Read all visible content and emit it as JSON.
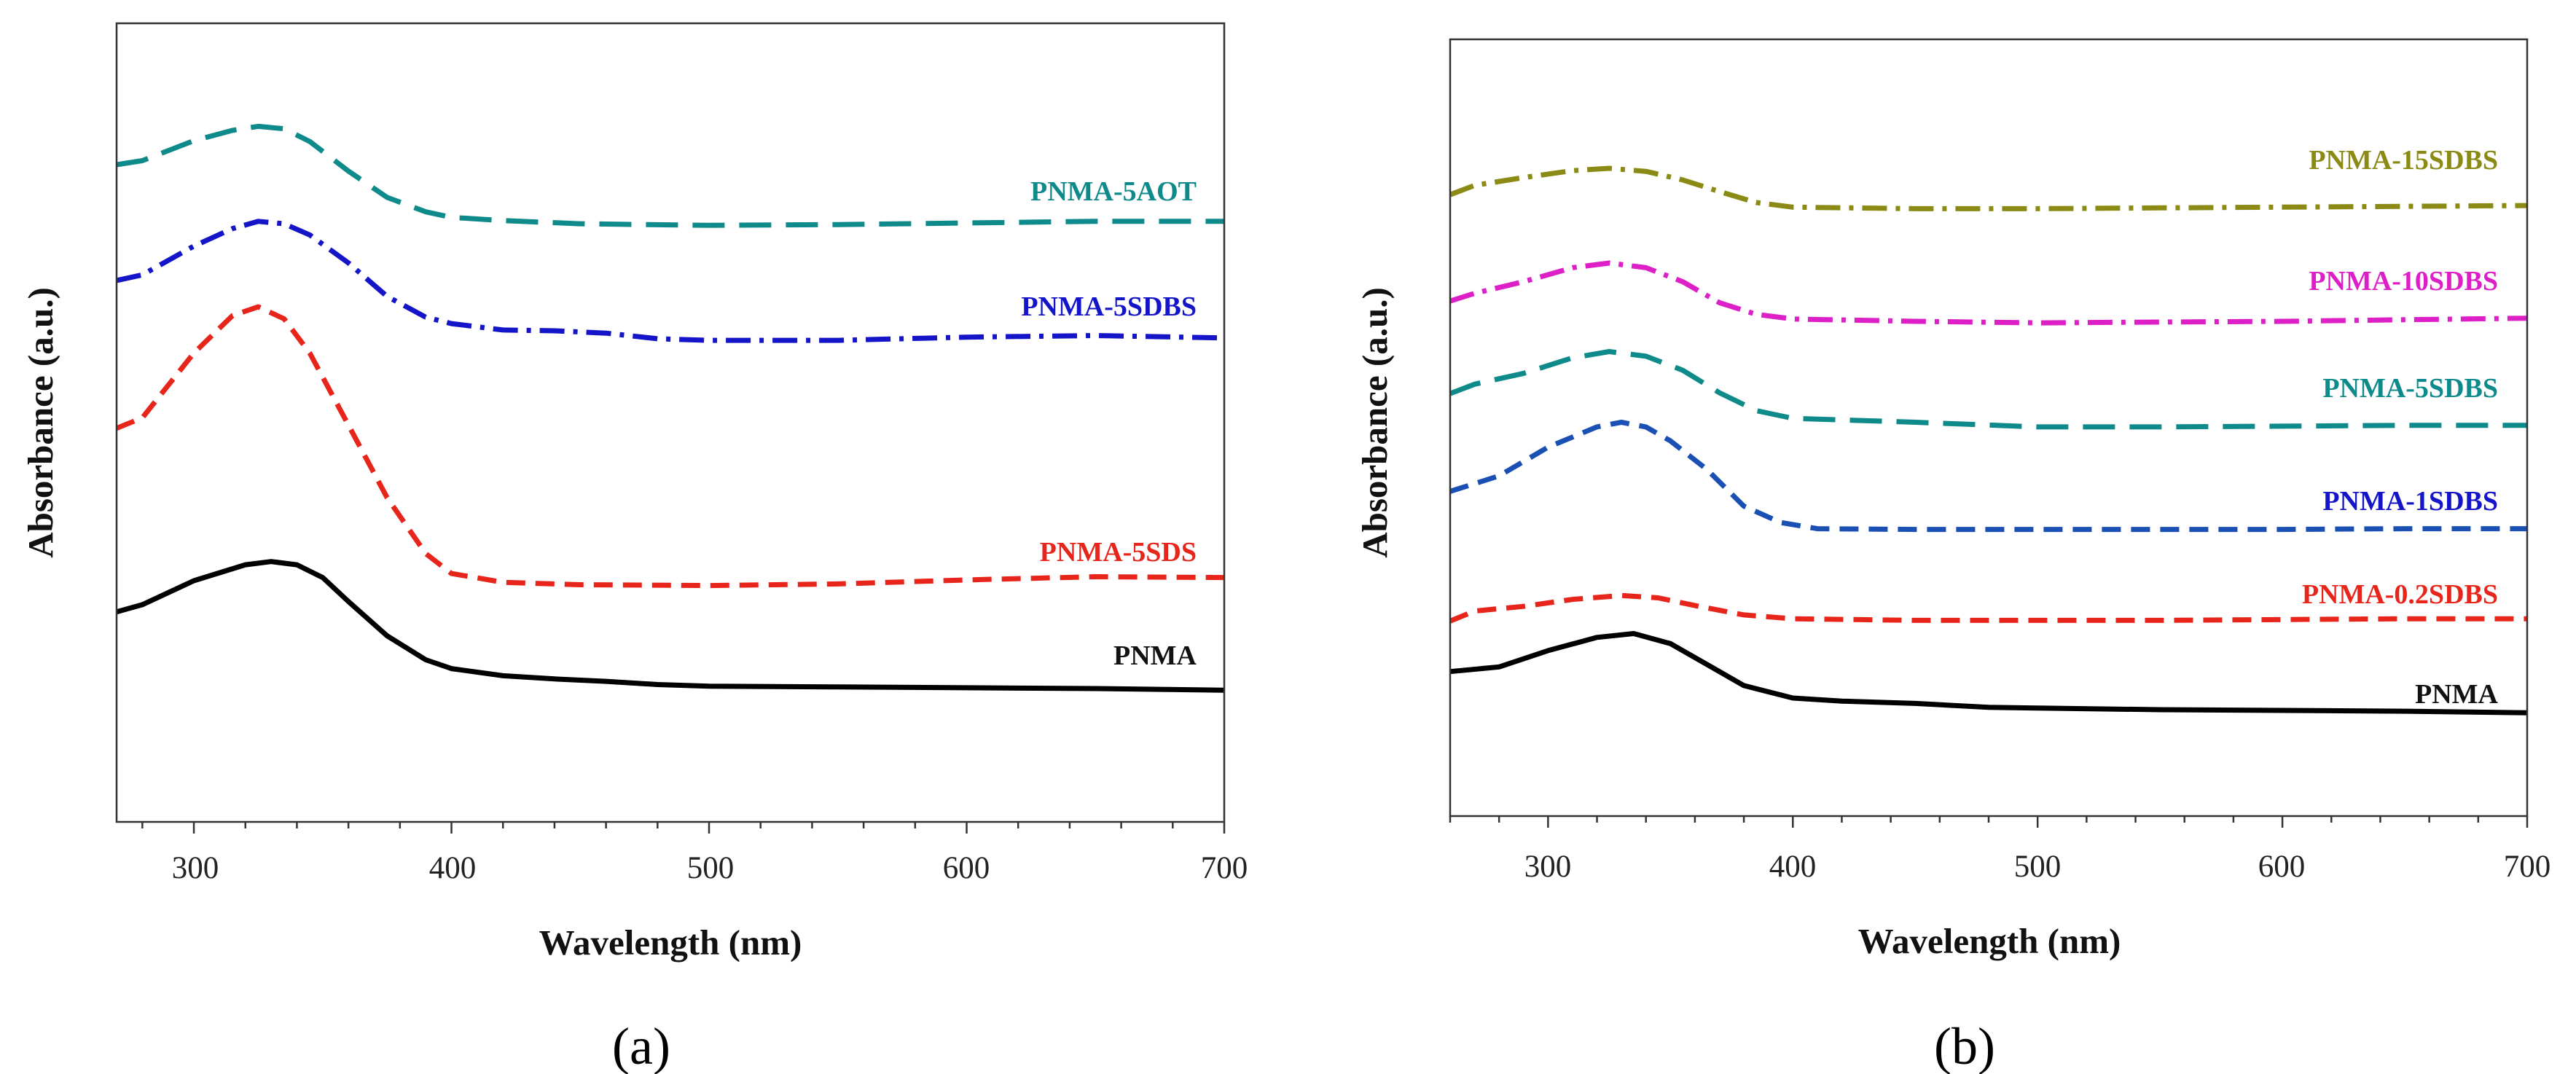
{
  "chart_data": [
    {
      "panel_label": "(a)",
      "type": "line",
      "xlabel": "Wavelength (nm)",
      "ylabel": "Absorbance (a.u.)",
      "xlim": [
        270,
        700
      ],
      "ylim": [
        0,
        1
      ],
      "xticks": [
        "300",
        "400",
        "500",
        "600",
        "700"
      ],
      "grid": false,
      "series": [
        {
          "name": "PNMA",
          "color": "#000000",
          "dash": "solid",
          "points": [
            [
              270,
              0.263
            ],
            [
              280,
              0.272
            ],
            [
              300,
              0.302
            ],
            [
              320,
              0.322
            ],
            [
              330,
              0.326
            ],
            [
              340,
              0.322
            ],
            [
              350,
              0.306
            ],
            [
              360,
              0.276
            ],
            [
              375,
              0.233
            ],
            [
              390,
              0.203
            ],
            [
              400,
              0.192
            ],
            [
              420,
              0.183
            ],
            [
              440,
              0.179
            ],
            [
              460,
              0.176
            ],
            [
              480,
              0.172
            ],
            [
              500,
              0.17
            ],
            [
              550,
              0.169
            ],
            [
              600,
              0.168
            ],
            [
              650,
              0.167
            ],
            [
              700,
              0.165
            ]
          ]
        },
        {
          "name": "PNMA-5SDS",
          "color": "#e8251b",
          "dash": "dash",
          "points": [
            [
              270,
              0.493
            ],
            [
              280,
              0.506
            ],
            [
              300,
              0.587
            ],
            [
              315,
              0.634
            ],
            [
              325,
              0.645
            ],
            [
              335,
              0.63
            ],
            [
              345,
              0.587
            ],
            [
              360,
              0.497
            ],
            [
              375,
              0.406
            ],
            [
              390,
              0.336
            ],
            [
              400,
              0.311
            ],
            [
              420,
              0.3
            ],
            [
              450,
              0.297
            ],
            [
              500,
              0.296
            ],
            [
              550,
              0.298
            ],
            [
              600,
              0.303
            ],
            [
              650,
              0.307
            ],
            [
              700,
              0.306
            ]
          ]
        },
        {
          "name": "PNMA-5SDBS",
          "color": "#1414c8",
          "dash": "dashdot",
          "points": [
            [
              270,
              0.678
            ],
            [
              280,
              0.685
            ],
            [
              300,
              0.721
            ],
            [
              315,
              0.743
            ],
            [
              325,
              0.752
            ],
            [
              335,
              0.749
            ],
            [
              345,
              0.735
            ],
            [
              360,
              0.7
            ],
            [
              375,
              0.658
            ],
            [
              390,
              0.632
            ],
            [
              400,
              0.624
            ],
            [
              420,
              0.616
            ],
            [
              440,
              0.615
            ],
            [
              460,
              0.612
            ],
            [
              480,
              0.605
            ],
            [
              500,
              0.603
            ],
            [
              550,
              0.603
            ],
            [
              600,
              0.607
            ],
            [
              650,
              0.609
            ],
            [
              700,
              0.606
            ]
          ]
        },
        {
          "name": "PNMA-5AOT",
          "color": "#0f8a8a",
          "dash": "longdash",
          "points": [
            [
              270,
              0.823
            ],
            [
              280,
              0.828
            ],
            [
              300,
              0.853
            ],
            [
              315,
              0.866
            ],
            [
              325,
              0.871
            ],
            [
              335,
              0.868
            ],
            [
              345,
              0.852
            ],
            [
              360,
              0.815
            ],
            [
              375,
              0.782
            ],
            [
              390,
              0.764
            ],
            [
              400,
              0.757
            ],
            [
              420,
              0.753
            ],
            [
              450,
              0.749
            ],
            [
              500,
              0.747
            ],
            [
              550,
              0.748
            ],
            [
              600,
              0.75
            ],
            [
              650,
              0.752
            ],
            [
              700,
              0.752
            ]
          ]
        }
      ],
      "annotations": [
        "PNMA-5AOT",
        "PNMA-5SDBS",
        "PNMA-5SDS",
        "PNMA"
      ]
    },
    {
      "panel_label": "(b)",
      "type": "line",
      "xlabel": "Wavelength (nm)",
      "ylabel": "Absorbance (a.u.)",
      "xlim": [
        260,
        700
      ],
      "ylim": [
        0,
        1
      ],
      "xticks": [
        "300",
        "400",
        "500",
        "600",
        "700"
      ],
      "grid": false,
      "series": [
        {
          "name": "PNMA",
          "color": "#000000",
          "dash": "solid",
          "points": [
            [
              260,
              0.186
            ],
            [
              280,
              0.192
            ],
            [
              300,
              0.213
            ],
            [
              320,
              0.23
            ],
            [
              335,
              0.235
            ],
            [
              350,
              0.222
            ],
            [
              365,
              0.195
            ],
            [
              380,
              0.168
            ],
            [
              400,
              0.152
            ],
            [
              420,
              0.148
            ],
            [
              450,
              0.145
            ],
            [
              480,
              0.14
            ],
            [
              500,
              0.139
            ],
            [
              550,
              0.137
            ],
            [
              600,
              0.136
            ],
            [
              650,
              0.135
            ],
            [
              700,
              0.133
            ]
          ]
        },
        {
          "name": "PNMA-0.2SDBS",
          "color": "#e8251b",
          "dash": "dash",
          "points": [
            [
              260,
              0.251
            ],
            [
              270,
              0.264
            ],
            [
              290,
              0.27
            ],
            [
              310,
              0.279
            ],
            [
              330,
              0.284
            ],
            [
              345,
              0.281
            ],
            [
              360,
              0.271
            ],
            [
              380,
              0.259
            ],
            [
              400,
              0.254
            ],
            [
              450,
              0.252
            ],
            [
              500,
              0.252
            ],
            [
              550,
              0.252
            ],
            [
              600,
              0.253
            ],
            [
              650,
              0.254
            ],
            [
              700,
              0.254
            ]
          ]
        },
        {
          "name": "PNMA-1SDBS",
          "color": "#1a4fb4",
          "dash": "dash",
          "points": [
            [
              260,
              0.418
            ],
            [
              270,
              0.428
            ],
            [
              280,
              0.438
            ],
            [
              300,
              0.475
            ],
            [
              320,
              0.501
            ],
            [
              330,
              0.507
            ],
            [
              340,
              0.501
            ],
            [
              350,
              0.483
            ],
            [
              365,
              0.446
            ],
            [
              380,
              0.399
            ],
            [
              395,
              0.378
            ],
            [
              410,
              0.37
            ],
            [
              450,
              0.369
            ],
            [
              500,
              0.369
            ],
            [
              550,
              0.369
            ],
            [
              600,
              0.369
            ],
            [
              650,
              0.37
            ],
            [
              700,
              0.37
            ]
          ]
        },
        {
          "name": "PNMA-5SDBS",
          "color": "#0f8a8a",
          "dash": "longdash",
          "points": [
            [
              260,
              0.544
            ],
            [
              270,
              0.556
            ],
            [
              290,
              0.57
            ],
            [
              310,
              0.59
            ],
            [
              325,
              0.598
            ],
            [
              340,
              0.592
            ],
            [
              355,
              0.574
            ],
            [
              370,
              0.545
            ],
            [
              385,
              0.522
            ],
            [
              400,
              0.512
            ],
            [
              420,
              0.51
            ],
            [
              450,
              0.507
            ],
            [
              500,
              0.501
            ],
            [
              550,
              0.501
            ],
            [
              600,
              0.502
            ],
            [
              650,
              0.503
            ],
            [
              700,
              0.503
            ]
          ]
        },
        {
          "name": "PNMA-10SDBS",
          "color": "#dd1fc8",
          "dash": "dashdot",
          "points": [
            [
              260,
              0.663
            ],
            [
              270,
              0.673
            ],
            [
              290,
              0.688
            ],
            [
              310,
              0.706
            ],
            [
              325,
              0.712
            ],
            [
              340,
              0.706
            ],
            [
              355,
              0.688
            ],
            [
              370,
              0.661
            ],
            [
              385,
              0.646
            ],
            [
              400,
              0.64
            ],
            [
              450,
              0.637
            ],
            [
              500,
              0.635
            ],
            [
              550,
              0.636
            ],
            [
              600,
              0.637
            ],
            [
              650,
              0.639
            ],
            [
              700,
              0.641
            ]
          ]
        },
        {
          "name": "PNMA-15SDBS",
          "color": "#8a8a14",
          "dash": "dashdot",
          "points": [
            [
              260,
              0.8
            ],
            [
              270,
              0.812
            ],
            [
              290,
              0.822
            ],
            [
              310,
              0.831
            ],
            [
              325,
              0.834
            ],
            [
              340,
              0.83
            ],
            [
              355,
              0.819
            ],
            [
              370,
              0.804
            ],
            [
              385,
              0.79
            ],
            [
              400,
              0.784
            ],
            [
              450,
              0.782
            ],
            [
              500,
              0.782
            ],
            [
              550,
              0.783
            ],
            [
              600,
              0.784
            ],
            [
              650,
              0.785
            ],
            [
              700,
              0.786
            ]
          ]
        }
      ],
      "annotations": [
        "PNMA-15SDBS",
        "PNMA-10SDBS",
        "PNMA-5SDBS",
        "PNMA-1SDBS",
        "PNMA-0.2SDBS",
        "PNMA"
      ]
    }
  ]
}
